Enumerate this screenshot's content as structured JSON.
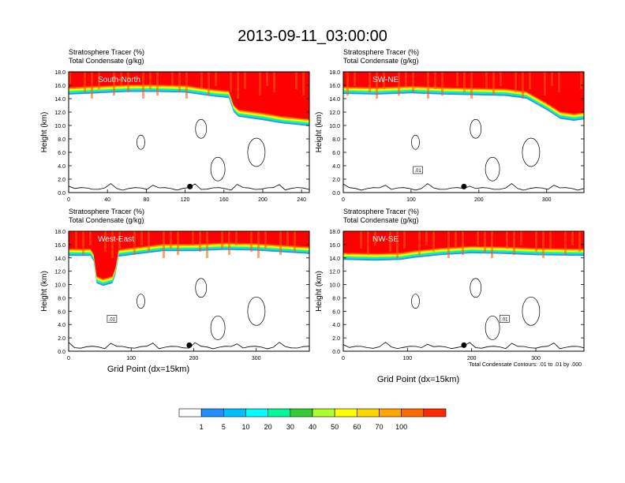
{
  "chart_data": {
    "type": "cross-section-contour",
    "title": "2013-09-11_03:00:00",
    "field_label": "Stratosphere Tracer   (%)",
    "field2_label": "Total Condensate   (g/kg)",
    "ylabel": "Height (km)",
    "xlabel": "Grid Point (dx=15km)",
    "contour_note": "Total Condensate Contours: .01 to .01 by .000",
    "contour_level_label": ".01",
    "y_ticks": [
      "0.0",
      "2.0",
      "4.0",
      "6.0",
      "8.0",
      "10.0",
      "12.0",
      "14.0",
      "16.0",
      "18.0"
    ],
    "ylim": [
      0,
      18
    ],
    "panels": [
      {
        "name": "South-North",
        "xlim": [
          0,
          248
        ],
        "x_ticks": [
          "0",
          "40",
          "80",
          "120",
          "160",
          "200",
          "240"
        ],
        "x_tick_values": [
          0,
          40,
          80,
          120,
          160,
          200,
          240
        ],
        "tracer_base": [
          [
            0,
            14.6
          ],
          [
            30,
            14.8
          ],
          [
            60,
            15.0
          ],
          [
            90,
            15.0
          ],
          [
            120,
            14.9
          ],
          [
            150,
            14.3
          ],
          [
            165,
            14.1
          ],
          [
            170,
            12.0
          ],
          [
            175,
            11.3
          ],
          [
            180,
            11.2
          ],
          [
            200,
            10.8
          ],
          [
            220,
            10.3
          ],
          [
            248,
            9.9
          ]
        ],
        "marker_x": 125
      },
      {
        "name": "SW-NE",
        "xlim": [
          0,
          355
        ],
        "x_ticks": [
          "0",
          "100",
          "200",
          "300"
        ],
        "x_tick_values": [
          0,
          100,
          200,
          300
        ],
        "tracer_base": [
          [
            0,
            14.7
          ],
          [
            50,
            14.6
          ],
          [
            100,
            14.8
          ],
          [
            150,
            14.6
          ],
          [
            200,
            14.5
          ],
          [
            240,
            14.4
          ],
          [
            270,
            14.0
          ],
          [
            300,
            12.3
          ],
          [
            320,
            11.0
          ],
          [
            340,
            10.7
          ],
          [
            355,
            10.9
          ]
        ],
        "marker_x": 178
      },
      {
        "name": "West-East",
        "xlim": [
          0,
          385
        ],
        "x_ticks": [
          "0",
          "100",
          "200",
          "300"
        ],
        "x_tick_values": [
          0,
          100,
          200,
          300
        ],
        "tracer_base": [
          [
            0,
            14.3
          ],
          [
            35,
            14.3
          ],
          [
            40,
            13.5
          ],
          [
            45,
            10.2
          ],
          [
            55,
            9.8
          ],
          [
            70,
            10.2
          ],
          [
            75,
            11.5
          ],
          [
            80,
            14.2
          ],
          [
            150,
            15.0
          ],
          [
            200,
            15.0
          ],
          [
            250,
            15.2
          ],
          [
            300,
            15.1
          ],
          [
            385,
            14.6
          ]
        ],
        "marker_x": 193
      },
      {
        "name": "NW-SE",
        "xlim": [
          0,
          375
        ],
        "x_ticks": [
          "0",
          "100",
          "200",
          "300"
        ],
        "x_tick_values": [
          0,
          100,
          200,
          300
        ],
        "tracer_base": [
          [
            0,
            13.7
          ],
          [
            50,
            13.6
          ],
          [
            90,
            13.7
          ],
          [
            110,
            14.0
          ],
          [
            150,
            14.4
          ],
          [
            200,
            14.7
          ],
          [
            250,
            14.6
          ],
          [
            300,
            14.4
          ],
          [
            375,
            14.3
          ]
        ],
        "marker_x": 188
      }
    ],
    "colorbar": {
      "labels": [
        "1",
        "5",
        "10",
        "20",
        "30",
        "40",
        "50",
        "60",
        "70",
        "100"
      ],
      "colors": [
        "#ffffff",
        "#1e90ff",
        "#00bfff",
        "#00ffff",
        "#00fa9a",
        "#32cd32",
        "#adff2f",
        "#ffff00",
        "#ffd700",
        "#ffa500",
        "#ff6a00",
        "#ff2a00"
      ]
    }
  }
}
